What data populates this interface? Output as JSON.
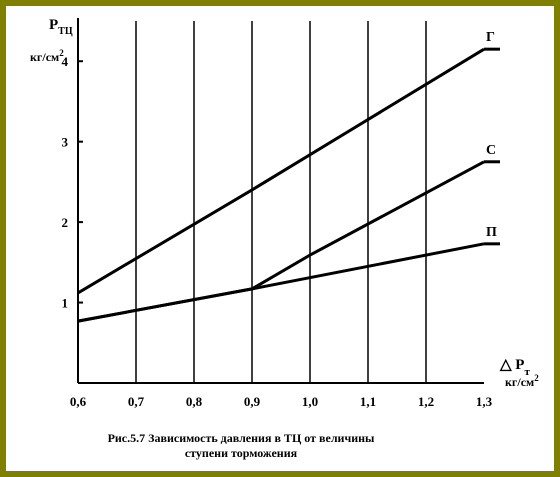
{
  "chart_data": {
    "type": "line",
    "y_title": {
      "main": "P",
      "sub": "ТЦ"
    },
    "y_unit": {
      "main": "кг/см",
      "sup": "2"
    },
    "x_title": {
      "prefix": "△ P",
      "sub": "т"
    },
    "x_unit": {
      "main": "кг/см",
      "sup": "2"
    },
    "xlim": [
      0.6,
      1.3
    ],
    "ylim": [
      0,
      4.5
    ],
    "x_ticks": [
      "0,6",
      "0,7",
      "0,8",
      "0,9",
      "1,0",
      "1,1",
      "1,2",
      "1,3"
    ],
    "y_ticks": [
      {
        "value": 1,
        "label": "1"
      },
      {
        "value": 2,
        "label": "2"
      },
      {
        "value": 3,
        "label": "3"
      },
      {
        "value": 4,
        "label": "4"
      }
    ],
    "grid": "vertical",
    "series": [
      {
        "name": "Г",
        "x": [
          0.6,
          0.9,
          1.3
        ],
        "y": [
          1.12,
          2.4,
          4.15
        ]
      },
      {
        "name": "С",
        "x": [
          0.6,
          0.9,
          1.0,
          1.3
        ],
        "y": [
          0.77,
          1.17,
          1.59,
          2.75
        ]
      },
      {
        "name": "П",
        "x": [
          0.6,
          0.9,
          1.3
        ],
        "y": [
          0.77,
          1.17,
          1.73
        ]
      }
    ]
  },
  "caption": {
    "line1": "Рис.5.7  Зависимость давления в ТЦ от величины",
    "line2": "ступени торможения"
  }
}
